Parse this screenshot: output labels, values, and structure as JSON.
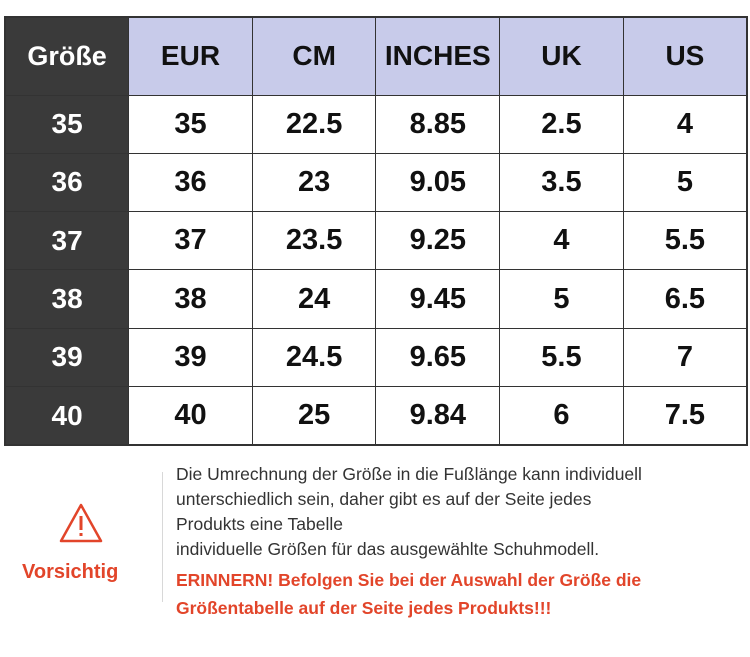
{
  "table": {
    "headers": [
      "Größe",
      "EUR",
      "CM",
      "INCHES",
      "UK",
      "US"
    ],
    "rows": [
      [
        "35",
        "35",
        "22.5",
        "8.85",
        "2.5",
        "4"
      ],
      [
        "36",
        "36",
        "23",
        "9.05",
        "3.5",
        "5"
      ],
      [
        "37",
        "37",
        "23.5",
        "9.25",
        "4",
        "5.5"
      ],
      [
        "38",
        "38",
        "24",
        "9.45",
        "5",
        "6.5"
      ],
      [
        "39",
        "39",
        "24.5",
        "9.65",
        "5.5",
        "7"
      ],
      [
        "40",
        "40",
        "25",
        "9.84",
        "6",
        "7.5"
      ]
    ]
  },
  "warning": {
    "icon": "warning-triangle-icon",
    "label": "Vorsichtig",
    "color": "#e2452a",
    "note_lines": [
      "Die Umrechnung der Größe in die Fußlänge kann individuell",
      "unterschiedlich sein, daher gibt es auf der Seite jedes",
      "Produkts eine Tabelle",
      "individuelle Größen für das ausgewählte Schuhmodell."
    ],
    "reminder_lines": [
      "ERINNERN! Befolgen Sie bei der Auswahl der Größe die",
      "Größentabelle auf der Seite jedes Produkts!!!"
    ]
  },
  "colors": {
    "header_bg": "#c8cbea",
    "size_col_bg": "#3a3a3a",
    "border": "#333333"
  }
}
